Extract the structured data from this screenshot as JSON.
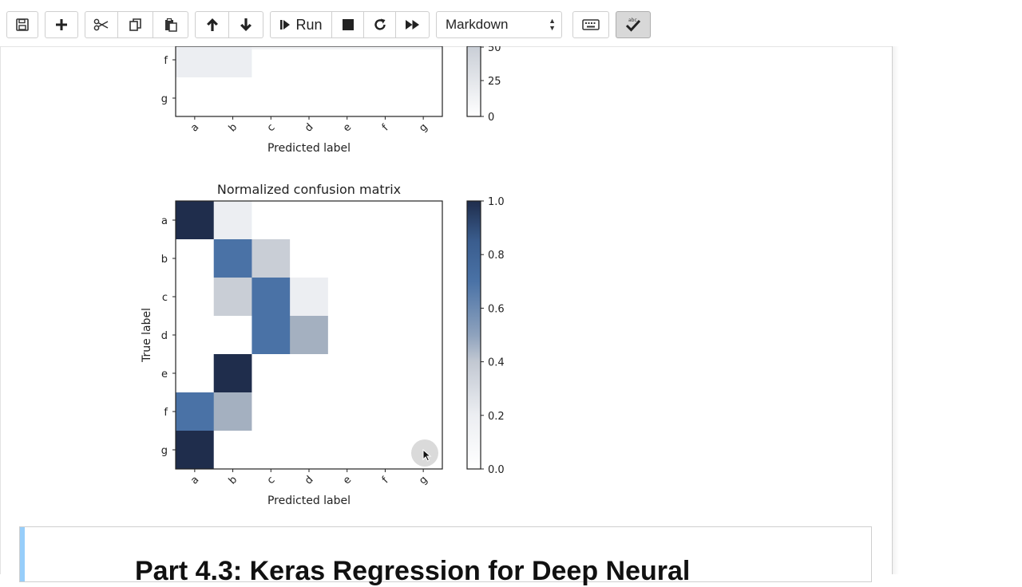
{
  "toolbar": {
    "buttons": [
      {
        "name": "save-button",
        "icon": "floppy-icon"
      },
      {
        "name": "insert-cell-button",
        "icon": "plus-icon"
      },
      {
        "name": "cut-button",
        "icon": "scissors-icon"
      },
      {
        "name": "copy-button",
        "icon": "copy-icon"
      },
      {
        "name": "paste-button",
        "icon": "paste-icon"
      },
      {
        "name": "move-up-button",
        "icon": "arrow-up-icon"
      },
      {
        "name": "move-down-button",
        "icon": "arrow-down-icon"
      },
      {
        "name": "run-button",
        "icon": "step-forward-icon"
      },
      {
        "name": "stop-button",
        "icon": "stop-icon"
      },
      {
        "name": "restart-button",
        "icon": "restart-icon"
      },
      {
        "name": "run-all-button",
        "icon": "fast-forward-icon"
      },
      {
        "name": "keyboard-button",
        "icon": "keyboard-icon"
      },
      {
        "name": "spellcheck-button",
        "icon": "check-icon"
      }
    ],
    "run_label": "Run",
    "cell_type": "Markdown"
  },
  "chart_data": [
    {
      "type": "heatmap",
      "title": "",
      "partial": true,
      "xlabel": "Predicted label",
      "ylabel": "",
      "x_categories": [
        "a",
        "b",
        "c",
        "d",
        "e",
        "f",
        "g"
      ],
      "y_categories_visible": [
        "f",
        "g"
      ],
      "colorbar_ticks_visible": [
        "25",
        "0"
      ],
      "colorbar_partial_tick": "50"
    },
    {
      "type": "heatmap",
      "title": "Normalized confusion matrix",
      "xlabel": "Predicted label",
      "ylabel": "True label",
      "x_categories": [
        "a",
        "b",
        "c",
        "d",
        "e",
        "f",
        "g"
      ],
      "y_categories": [
        "a",
        "b",
        "c",
        "d",
        "e",
        "f",
        "g"
      ],
      "values": [
        [
          0.97,
          0.02,
          0,
          0,
          0,
          0,
          0
        ],
        [
          0,
          0.66,
          0.25,
          0,
          0,
          0,
          0
        ],
        [
          0,
          0.25,
          0.66,
          0.02,
          0,
          0,
          0
        ],
        [
          0,
          0,
          0.66,
          0.38,
          0,
          0,
          0
        ],
        [
          0,
          1.0,
          0,
          0,
          0,
          0,
          0
        ],
        [
          0.67,
          0.33,
          0,
          0,
          0,
          0,
          0
        ],
        [
          1.0,
          0,
          0,
          0,
          0,
          0,
          0
        ]
      ],
      "colorbar_range": [
        0.0,
        1.0
      ],
      "colorbar_ticks": [
        "1.0",
        "0.8",
        "0.6",
        "0.4",
        "0.2",
        "0.0"
      ],
      "colormap": "Blues"
    }
  ],
  "markdown_cell": {
    "heading": "Part 4.3: Keras Regression for Deep Neural"
  }
}
